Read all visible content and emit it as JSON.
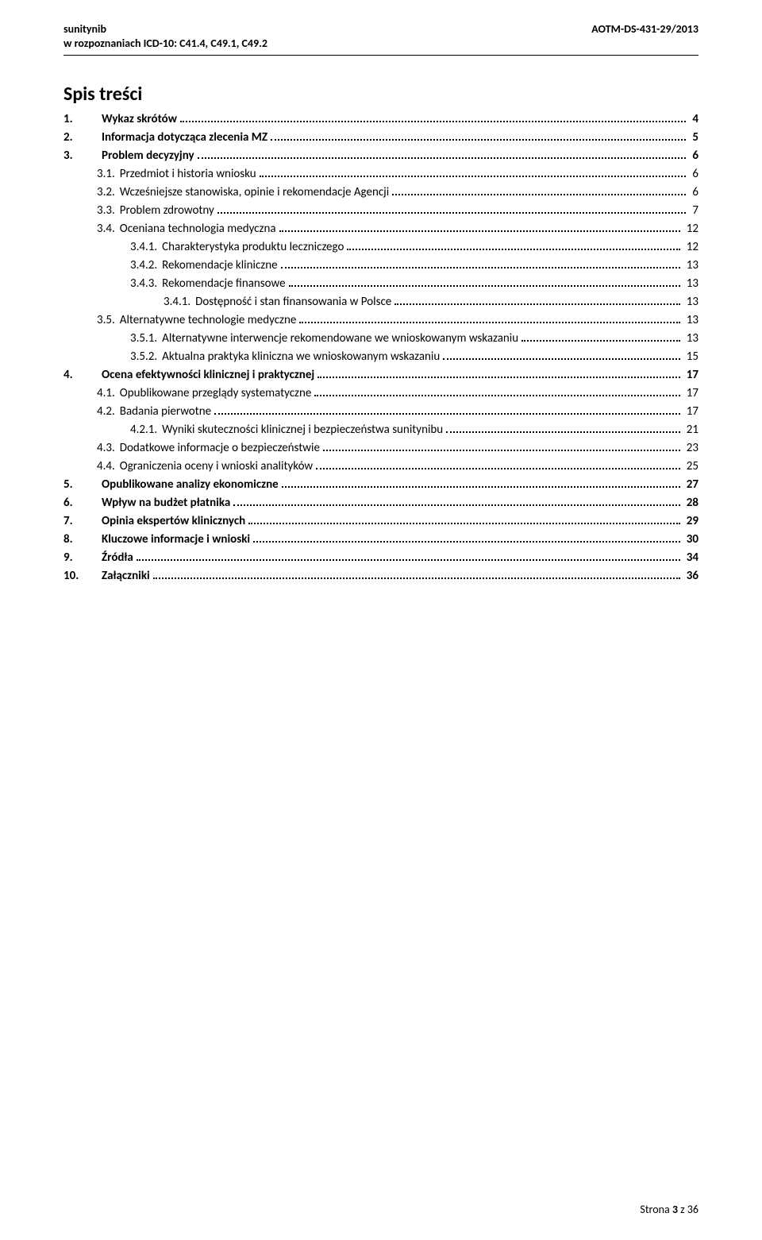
{
  "header": {
    "left_line1": "sunitynib",
    "left_line2": "w rozpoznaniach ICD-10: C41.4, C49.1, C49.2",
    "right": "AOTM-DS-431-29/2013"
  },
  "title": "Spis treści",
  "toc": [
    {
      "lvl": 1,
      "num": "1.",
      "label": "Wykaz skrótów",
      "page": "4",
      "bold": true
    },
    {
      "lvl": 1,
      "num": "2.",
      "label": "Informacja dotycząca zlecenia MZ",
      "page": "5",
      "bold": true
    },
    {
      "lvl": 1,
      "num": "3.",
      "label": "Problem decyzyjny",
      "page": "6",
      "bold": true
    },
    {
      "lvl": 2,
      "num": "3.1.",
      "label": "Przedmiot i historia wniosku",
      "page": "6"
    },
    {
      "lvl": 2,
      "num": "3.2.",
      "label": "Wcześniejsze stanowiska, opinie i rekomendacje Agencji",
      "page": "6"
    },
    {
      "lvl": 2,
      "num": "3.3.",
      "label": "Problem zdrowotny",
      "page": "7"
    },
    {
      "lvl": 2,
      "num": "3.4.",
      "label": "Oceniana technologia medyczna",
      "page": "12"
    },
    {
      "lvl": 3,
      "num": "3.4.1.",
      "label": "Charakterystyka produktu leczniczego",
      "page": "12"
    },
    {
      "lvl": 3,
      "num": "3.4.2.",
      "label": "Rekomendacje kliniczne",
      "page": "13"
    },
    {
      "lvl": 3,
      "num": "3.4.3.",
      "label": "Rekomendacje finansowe",
      "page": "13"
    },
    {
      "lvl": 4,
      "num": "3.4.1.",
      "label": "Dostępność i stan finansowania w Polsce",
      "page": "13"
    },
    {
      "lvl": 2,
      "num": "3.5.",
      "label": "Alternatywne technologie medyczne",
      "page": "13"
    },
    {
      "lvl": 3,
      "num": "3.5.1.",
      "label": "Alternatywne interwencje rekomendowane we wnioskowanym wskazaniu",
      "page": "13"
    },
    {
      "lvl": 3,
      "num": "3.5.2.",
      "label": "Aktualna praktyka kliniczna we wnioskowanym wskazaniu",
      "page": "15"
    },
    {
      "lvl": 1,
      "num": "4.",
      "label": "Ocena efektywności klinicznej i praktycznej",
      "page": "17",
      "bold": true
    },
    {
      "lvl": 2,
      "num": "4.1.",
      "label": "Opublikowane przeglądy systematyczne",
      "page": "17"
    },
    {
      "lvl": 2,
      "num": "4.2.",
      "label": "Badania pierwotne",
      "page": "17"
    },
    {
      "lvl": 3,
      "num": "4.2.1.",
      "label": "Wyniki skuteczności klinicznej i bezpieczeństwa sunitynibu",
      "page": "21"
    },
    {
      "lvl": 2,
      "num": "4.3.",
      "label": "Dodatkowe informacje o bezpieczeństwie",
      "page": "23"
    },
    {
      "lvl": 2,
      "num": "4.4.",
      "label": "Ograniczenia oceny i wnioski analityków",
      "page": "25"
    },
    {
      "lvl": 1,
      "num": "5.",
      "label": "Opublikowane analizy ekonomiczne",
      "page": "27",
      "bold": true
    },
    {
      "lvl": 1,
      "num": "6.",
      "label": "Wpływ na budżet płatnika",
      "page": "28",
      "bold": true
    },
    {
      "lvl": 1,
      "num": "7.",
      "label": "Opinia ekspertów klinicznych",
      "page": "29",
      "bold": true
    },
    {
      "lvl": 1,
      "num": "8.",
      "label": "Kluczowe informacje i wnioski",
      "page": "30",
      "bold": true
    },
    {
      "lvl": 1,
      "num": "9.",
      "label": "Źródła",
      "page": "34",
      "bold": true
    },
    {
      "lvl": 1,
      "num": "10.",
      "label": "Załączniki",
      "page": "36",
      "bold": true
    }
  ],
  "footer": {
    "prefix": "Strona ",
    "current": "3",
    "sep": " z ",
    "total": "36"
  }
}
